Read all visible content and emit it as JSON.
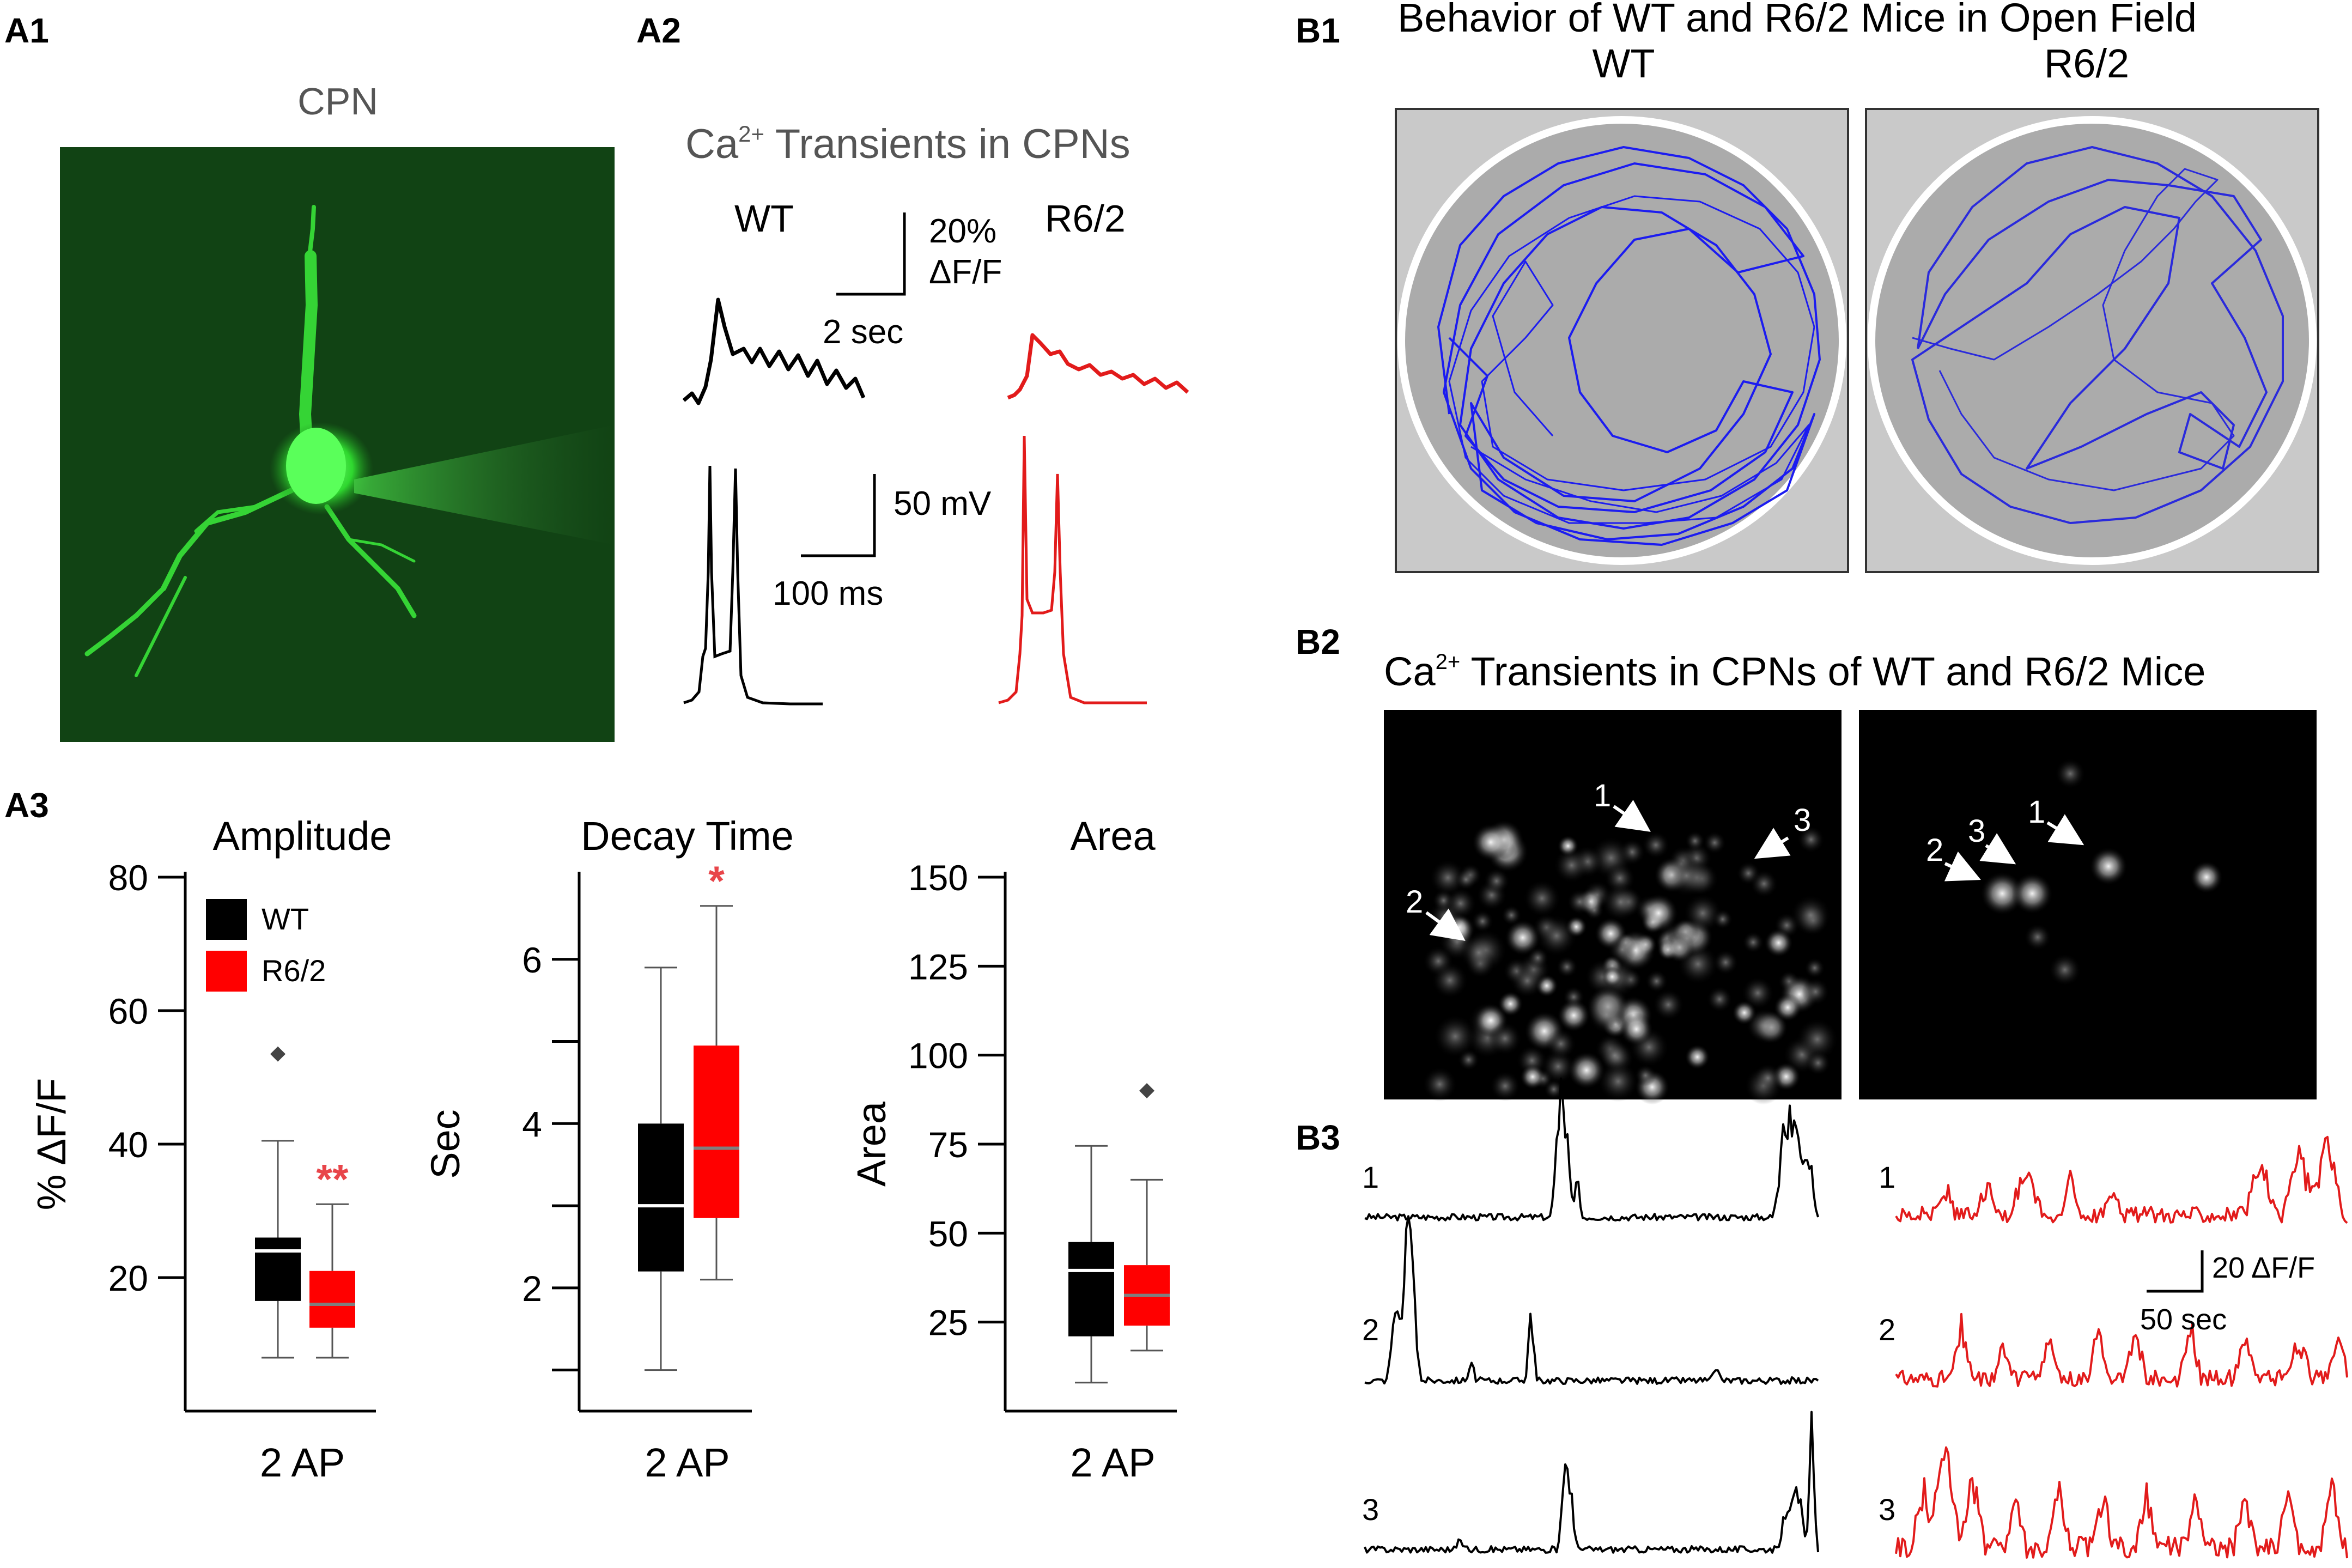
{
  "colors": {
    "wt": "#000000",
    "r62": "#ff0000",
    "cpn_green": "#2bd12b",
    "track_blue": "#1c1cf0",
    "arena_bg": "#c8c8c8",
    "arena_floor": "#aaaaaa",
    "star_red": "#e8454a"
  },
  "panels": {
    "A1": {
      "label": "A1",
      "title": "CPN"
    },
    "A2": {
      "label": "A2",
      "title_prefix": "Ca",
      "title_sup": "2+",
      "title_suffix": " Transients in CPNs",
      "wt": "WT",
      "r62": "R6/2",
      "scale_ca_y1": "20%",
      "scale_ca_y2": "ΔF/F",
      "scale_ca_x": "2 sec",
      "scale_v_y": "50 mV",
      "scale_v_x": "100 ms"
    },
    "A3": {
      "label": "A3"
    },
    "B1": {
      "label": "B1",
      "title": "Behavior of WT and R6/2 Mice in Open Field",
      "wt": "WT",
      "r62": "R6/2"
    },
    "B2": {
      "label": "B2",
      "title_prefix": "Ca",
      "title_sup": "2+",
      "title_suffix": " Transients in CPNs of WT and R6/2 Mice",
      "wt_cells": [
        "1",
        "2",
        "3"
      ],
      "r62_cells": [
        "1",
        "2",
        "3"
      ]
    },
    "B3": {
      "label": "B3",
      "rows": [
        "1",
        "2",
        "3"
      ],
      "scale_y": "20 ΔF/F",
      "scale_x": "50 sec"
    }
  },
  "chart_data": [
    {
      "type": "box",
      "title": "Amplitude",
      "ylabel": "% ΔF/F",
      "xlabel": "2 AP",
      "ylim": [
        0,
        80
      ],
      "yticks": [
        20,
        40,
        60,
        80
      ],
      "legend": [
        "WT",
        "R6/2"
      ],
      "series": [
        {
          "name": "WT",
          "whisker_low": 8,
          "q1": 16.5,
          "median": 24,
          "q3": 26,
          "whisker_high": 40.5,
          "outliers": [
            53.5
          ]
        },
        {
          "name": "R6/2",
          "whisker_low": 8,
          "q1": 12.5,
          "median": 16,
          "q3": 21,
          "whisker_high": 31,
          "outliers": [],
          "significance": "**"
        }
      ]
    },
    {
      "type": "box",
      "title": "Decay Time",
      "ylabel": "Sec",
      "xlabel": "2 AP",
      "ylim": [
        0.5,
        7
      ],
      "yticks": [
        2,
        4,
        6
      ],
      "series": [
        {
          "name": "WT",
          "whisker_low": 1,
          "q1": 2.2,
          "median": 3,
          "q3": 4,
          "whisker_high": 5.9,
          "outliers": []
        },
        {
          "name": "R6/2",
          "whisker_low": 2.1,
          "q1": 2.85,
          "median": 3.7,
          "q3": 4.95,
          "whisker_high": 6.65,
          "outliers": [],
          "significance": "*"
        }
      ]
    },
    {
      "type": "box",
      "title": "Area",
      "ylabel": "Area",
      "xlabel": "2 AP",
      "ylim": [
        0,
        150
      ],
      "yticks": [
        25,
        50,
        75,
        100,
        125,
        150
      ],
      "series": [
        {
          "name": "WT",
          "whisker_low": 8,
          "q1": 21,
          "median": 39.5,
          "q3": 47.5,
          "whisker_high": 74.5,
          "outliers": []
        },
        {
          "name": "R6/2",
          "whisker_low": 17,
          "q1": 24,
          "median": 32.5,
          "q3": 41,
          "whisker_high": 65,
          "outliers": [
            90
          ]
        }
      ]
    }
  ]
}
